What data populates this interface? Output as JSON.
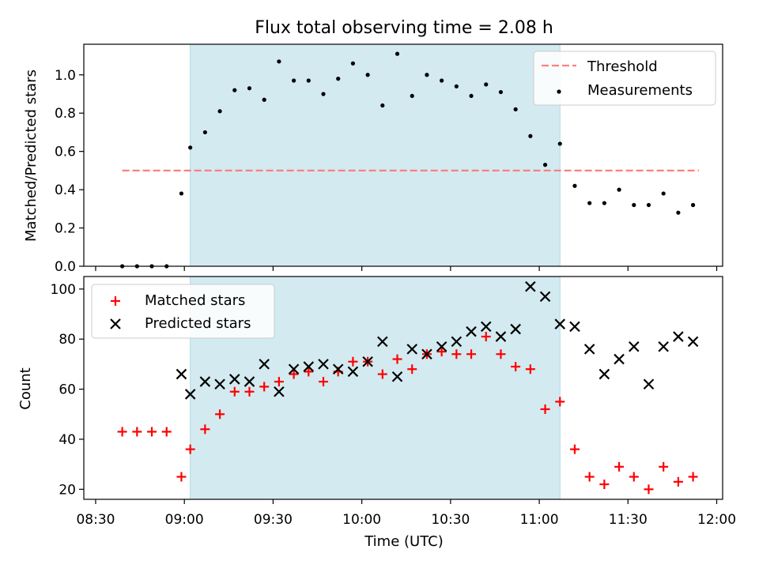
{
  "chart_data": [
    {
      "type": "scatter",
      "title": "Flux total observing time = 2.08 h",
      "xlabel": "",
      "ylabel": "Matched/Predicted stars",
      "ylim": [
        0,
        1.16
      ],
      "yticks": [
        0.0,
        0.2,
        0.4,
        0.6,
        0.8,
        1.0
      ],
      "yticklabels": [
        "0.0",
        "0.2",
        "0.4",
        "0.6",
        "0.8",
        "1.0"
      ],
      "legend": {
        "placement": "top-right",
        "entries": [
          "Threshold",
          "Measurements"
        ]
      },
      "threshold": {
        "name": "Threshold",
        "value": 0.5,
        "x_range": [
          "08:39",
          "11:54"
        ],
        "color": "#ff7f7f"
      },
      "highlight": {
        "x_range": [
          "09:02",
          "11:07"
        ],
        "color": "#d3eaf0"
      },
      "series": [
        {
          "name": "Measurements",
          "color": "#000000",
          "x": [
            "08:39",
            "08:44",
            "08:49",
            "08:54",
            "08:59",
            "09:02",
            "09:07",
            "09:12",
            "09:17",
            "09:22",
            "09:27",
            "09:32",
            "09:37",
            "09:42",
            "09:47",
            "09:52",
            "09:57",
            "10:02",
            "10:07",
            "10:12",
            "10:17",
            "10:22",
            "10:27",
            "10:32",
            "10:37",
            "10:42",
            "10:47",
            "10:52",
            "10:57",
            "11:02",
            "11:07",
            "11:12",
            "11:17",
            "11:22",
            "11:27",
            "11:32",
            "11:37",
            "11:42",
            "11:47",
            "11:52"
          ],
          "y": [
            0.0,
            0.0,
            0.0,
            0.0,
            0.38,
            0.62,
            0.7,
            0.81,
            0.92,
            0.93,
            0.87,
            1.07,
            0.97,
            0.97,
            0.9,
            0.98,
            1.06,
            1.0,
            0.84,
            1.11,
            0.89,
            1.0,
            0.97,
            0.94,
            0.89,
            0.95,
            0.91,
            0.82,
            0.68,
            0.53,
            0.64,
            0.42,
            0.33,
            0.33,
            0.4,
            0.32,
            0.32,
            0.38,
            0.28,
            0.32
          ]
        }
      ]
    },
    {
      "type": "scatter",
      "title": "",
      "xlabel": "Time (UTC)",
      "ylabel": "Count",
      "xlim": [
        "08:26",
        "12:02"
      ],
      "xticks": [
        "08:30",
        "09:00",
        "09:30",
        "10:00",
        "10:30",
        "11:00",
        "11:30",
        "12:00"
      ],
      "ylim": [
        16,
        105
      ],
      "yticks": [
        20,
        40,
        60,
        80,
        100
      ],
      "legend": {
        "placement": "top-left",
        "entries": [
          "Matched stars",
          "Predicted stars"
        ]
      },
      "highlight": {
        "x_range": [
          "09:02",
          "11:07"
        ],
        "color": "#d3eaf0"
      },
      "series": [
        {
          "name": "Matched stars",
          "marker": "plus",
          "color": "#ff0000",
          "x": [
            "08:39",
            "08:44",
            "08:49",
            "08:54",
            "08:59",
            "09:02",
            "09:07",
            "09:12",
            "09:17",
            "09:22",
            "09:27",
            "09:32",
            "09:37",
            "09:42",
            "09:47",
            "09:52",
            "09:57",
            "10:02",
            "10:07",
            "10:12",
            "10:17",
            "10:22",
            "10:27",
            "10:32",
            "10:37",
            "10:42",
            "10:47",
            "10:52",
            "10:57",
            "11:02",
            "11:07",
            "11:12",
            "11:17",
            "11:22",
            "11:27",
            "11:32",
            "11:37",
            "11:42",
            "11:47",
            "11:52"
          ],
          "y": [
            43,
            43,
            43,
            43,
            25,
            36,
            44,
            50,
            59,
            59,
            61,
            63,
            66,
            67,
            63,
            67,
            71,
            71,
            66,
            72,
            68,
            74,
            75,
            74,
            74,
            81,
            74,
            69,
            68,
            52,
            55,
            36,
            25,
            22,
            29,
            25,
            20,
            29,
            23,
            25
          ]
        },
        {
          "name": "Predicted stars",
          "marker": "x",
          "color": "#000000",
          "x": [
            "08:59",
            "09:02",
            "09:07",
            "09:12",
            "09:17",
            "09:22",
            "09:27",
            "09:32",
            "09:37",
            "09:42",
            "09:47",
            "09:52",
            "09:57",
            "10:02",
            "10:07",
            "10:12",
            "10:17",
            "10:22",
            "10:27",
            "10:32",
            "10:37",
            "10:42",
            "10:47",
            "10:52",
            "10:57",
            "11:02",
            "11:07",
            "11:12",
            "11:17",
            "11:22",
            "11:27",
            "11:32",
            "11:37",
            "11:42",
            "11:47",
            "11:52"
          ],
          "y": [
            66,
            58,
            63,
            62,
            64,
            63,
            70,
            59,
            68,
            69,
            70,
            68,
            67,
            71,
            79,
            65,
            76,
            74,
            77,
            79,
            83,
            85,
            81,
            84,
            101,
            97,
            86,
            85,
            76,
            66,
            72,
            77,
            62,
            77,
            81,
            79
          ]
        }
      ]
    }
  ]
}
